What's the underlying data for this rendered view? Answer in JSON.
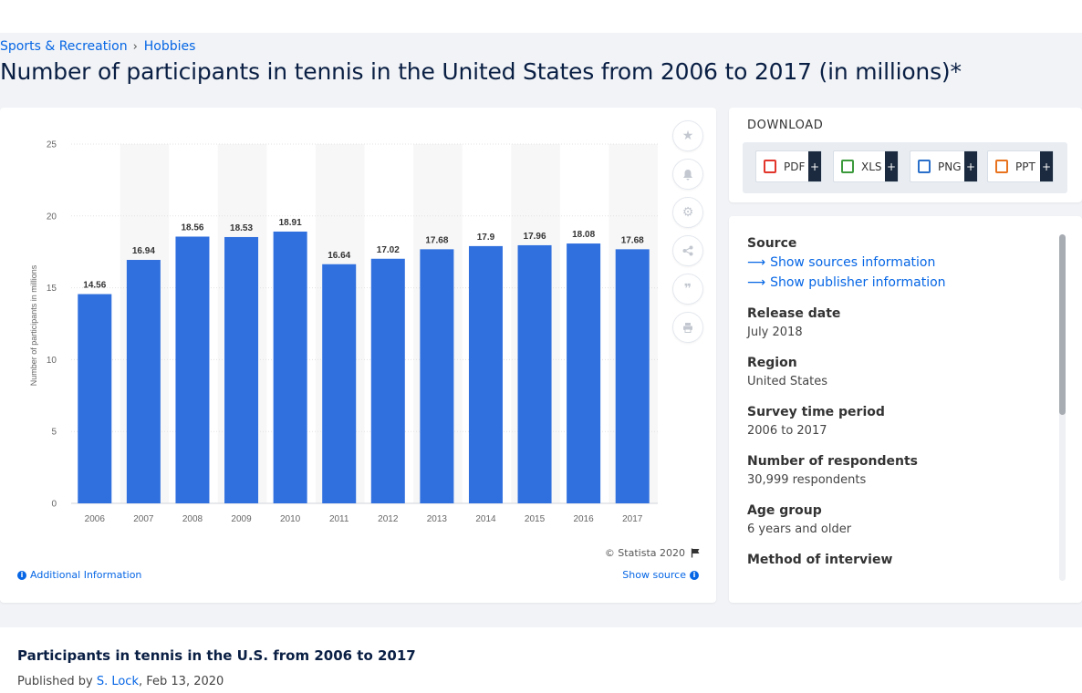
{
  "breadcrumb": {
    "item1": "Sports & Recreation",
    "item2": "Hobbies",
    "separator": "›"
  },
  "title": "Number of participants in tennis in the United States from 2006 to 2017 (in millions)*",
  "chart_data": {
    "type": "bar",
    "categories": [
      "2006",
      "2007",
      "2008",
      "2009",
      "2010",
      "2011",
      "2012",
      "2013",
      "2014",
      "2015",
      "2016",
      "2017"
    ],
    "values": [
      14.56,
      16.94,
      18.56,
      18.53,
      18.91,
      16.64,
      17.02,
      17.68,
      17.9,
      17.96,
      18.08,
      17.68
    ],
    "value_labels": [
      "14.56",
      "16.94",
      "18.56",
      "18.53",
      "18.91",
      "16.64",
      "17.02",
      "17.68",
      "17.9",
      "17.96",
      "18.08",
      "17.68"
    ],
    "ylabel": "Number of participants in millions",
    "ylim": [
      0,
      25
    ],
    "yticks": [
      "0",
      "5",
      "10",
      "15",
      "20",
      "25"
    ],
    "bar_color": "#2f6fde",
    "grid": true
  },
  "chart_footer": {
    "copyright": "© Statista 2020",
    "additional_info": "Additional Information",
    "show_source": "Show source"
  },
  "download": {
    "title": "DOWNLOAD",
    "buttons": [
      {
        "label": "PDF",
        "color": "#e2352b"
      },
      {
        "label": "XLS",
        "color": "#3c9a3c"
      },
      {
        "label": "PNG",
        "color": "#2a6fc9"
      },
      {
        "label": "PPT",
        "color": "#e8731e"
      }
    ],
    "plus": "+"
  },
  "meta": {
    "source_label": "Source",
    "show_sources": "Show sources information",
    "show_publisher": "Show publisher information",
    "release_label": "Release date",
    "release_value": "July 2018",
    "region_label": "Region",
    "region_value": "United States",
    "period_label": "Survey time period",
    "period_value": "2006 to 2017",
    "respondents_label": "Number of respondents",
    "respondents_value": "30,999 respondents",
    "age_label": "Age group",
    "age_value": "6 years and older",
    "method_label": "Method of interview"
  },
  "bottom": {
    "title": "Participants in tennis in the U.S. from 2006 to 2017",
    "published_prefix": "Published by",
    "author": "S. Lock",
    "date": ", Feb 13, 2020"
  }
}
